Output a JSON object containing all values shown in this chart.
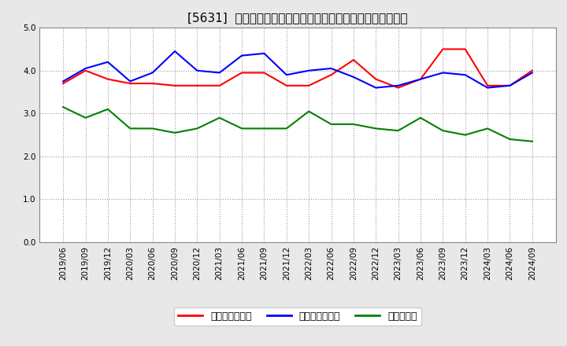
{
  "title": "[5631]  売上債権回転率、買入債務回転率、在庫回転率の推移",
  "x_labels": [
    "2019/06",
    "2019/09",
    "2019/12",
    "2020/03",
    "2020/06",
    "2020/09",
    "2020/12",
    "2021/03",
    "2021/06",
    "2021/09",
    "2021/12",
    "2022/03",
    "2022/06",
    "2022/09",
    "2022/12",
    "2023/03",
    "2023/06",
    "2023/09",
    "2023/12",
    "2024/03",
    "2024/06",
    "2024/09"
  ],
  "receivables": [
    3.7,
    4.0,
    3.8,
    3.7,
    3.7,
    3.65,
    3.65,
    3.65,
    3.95,
    3.95,
    3.65,
    3.65,
    3.9,
    4.25,
    3.8,
    3.6,
    3.8,
    4.5,
    4.5,
    3.65,
    3.65,
    4.0
  ],
  "payables": [
    3.75,
    4.05,
    4.2,
    3.75,
    3.95,
    4.45,
    4.0,
    3.95,
    4.35,
    4.4,
    3.9,
    4.0,
    4.05,
    3.85,
    3.6,
    3.65,
    3.8,
    3.95,
    3.9,
    3.6,
    3.65,
    3.95
  ],
  "inventory": [
    3.15,
    2.9,
    3.1,
    2.65,
    2.65,
    2.55,
    2.65,
    2.9,
    2.65,
    2.65,
    2.65,
    3.05,
    2.75,
    2.75,
    2.65,
    2.6,
    2.9,
    2.6,
    2.5,
    2.65,
    2.4,
    2.35
  ],
  "receivables_color": "#ff0000",
  "payables_color": "#0000ff",
  "inventory_color": "#008000",
  "ylim": [
    0.0,
    5.0
  ],
  "yticks": [
    0.0,
    1.0,
    2.0,
    3.0,
    4.0,
    5.0
  ],
  "legend_receivables": "売上債権回転率",
  "legend_payables": "買入債務回転率",
  "legend_inventory": "在庫回転率",
  "bg_color": "#e8e8e8",
  "plot_bg_color": "#ffffff",
  "grid_color": "#999999",
  "title_fontsize": 11,
  "axis_fontsize": 7.5,
  "legend_fontsize": 9
}
